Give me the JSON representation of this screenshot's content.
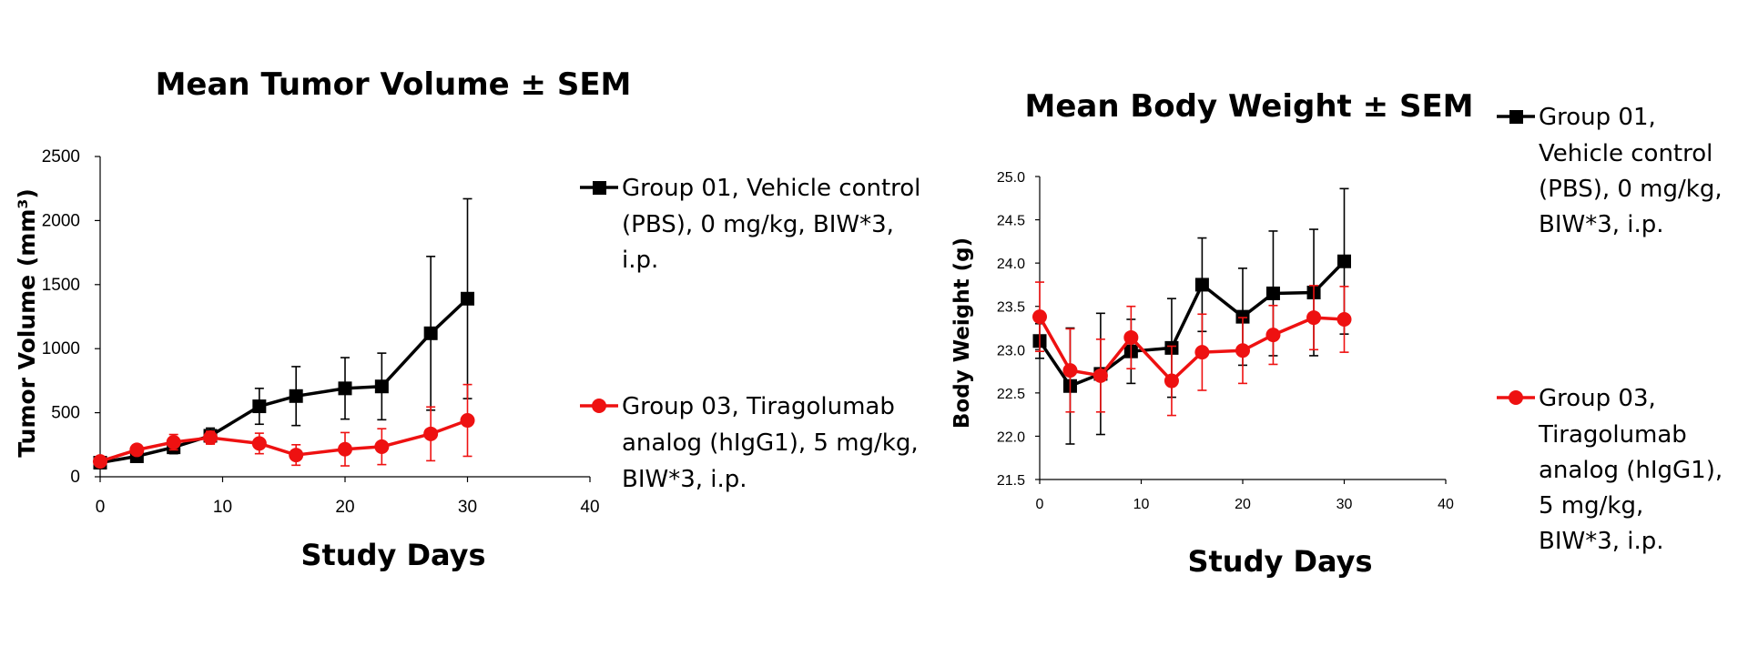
{
  "colors": {
    "group01": "#000000",
    "group03": "#ee1111",
    "axis": "#000000"
  },
  "chart_data": [
    {
      "type": "line",
      "title": "Mean Tumor Volume ± SEM",
      "xlabel": "Study Days",
      "ylabel": "Tumor Volume (mm³)",
      "xlim": [
        0,
        40
      ],
      "ylim": [
        0,
        2500
      ],
      "xticks": [
        0,
        10,
        20,
        30,
        40
      ],
      "yticks": [
        0,
        500,
        1000,
        1500,
        2000,
        2500
      ],
      "grid": false,
      "legend_position": "right",
      "series": [
        {
          "name": "Group 01, Vehicle control (PBS), 0 mg/kg, BIW*3, i.p.",
          "legend_lines": [
            "Group 01, Vehicle control",
            "(PBS), 0 mg/kg, BIW*3,",
            "i.p."
          ],
          "marker": "square",
          "color": "#000000",
          "x": [
            0,
            3,
            6,
            9,
            13,
            16,
            20,
            23,
            27,
            30
          ],
          "y": [
            110,
            160,
            230,
            320,
            550,
            630,
            690,
            705,
            1120,
            1390
          ],
          "err": [
            30,
            40,
            50,
            60,
            140,
            230,
            240,
            260,
            600,
            780
          ]
        },
        {
          "name": "Group 03, Tiragolumab analog (hIgG1), 5 mg/kg, BIW*3, i.p.",
          "legend_lines": [
            "Group 03, Tiragolumab",
            "analog (hIgG1), 5 mg/kg,",
            "BIW*3, i.p."
          ],
          "marker": "circle",
          "color": "#ee1111",
          "x": [
            0,
            3,
            6,
            9,
            13,
            16,
            20,
            23,
            27,
            30
          ],
          "y": [
            120,
            210,
            270,
            305,
            260,
            170,
            215,
            235,
            335,
            440
          ],
          "err": [
            30,
            40,
            60,
            50,
            80,
            80,
            130,
            140,
            210,
            280
          ]
        }
      ]
    },
    {
      "type": "line",
      "title": "Mean Body Weight ± SEM",
      "xlabel": "Study Days",
      "ylabel": "Body Weight (g)",
      "xlim": [
        0,
        40
      ],
      "ylim": [
        21.5,
        25.0
      ],
      "xticks": [
        0,
        10,
        20,
        30,
        40
      ],
      "yticks": [
        "21.5",
        "22.0",
        "22.5",
        "23.0",
        "23.5",
        "24.0",
        "24.5",
        "25.0"
      ],
      "grid": false,
      "legend_position": "right",
      "series": [
        {
          "name": "Group 01, Vehicle control (PBS), 0 mg/kg, BIW*3, i.p.",
          "legend_lines": [
            "Group 01,",
            "Vehicle control",
            "(PBS), 0 mg/kg,",
            "BIW*3, i.p."
          ],
          "marker": "square",
          "color": "#000000",
          "x": [
            0,
            3,
            6,
            9,
            13,
            16,
            20,
            23,
            27,
            30
          ],
          "y": [
            23.1,
            22.58,
            22.72,
            22.98,
            23.02,
            23.75,
            23.38,
            23.65,
            23.66,
            24.02
          ],
          "err": [
            0.2,
            0.67,
            0.7,
            0.37,
            0.57,
            0.54,
            0.56,
            0.72,
            0.73,
            0.84
          ]
        },
        {
          "name": "Group 03, Tiragolumab analog (hIgG1), 5 mg/kg, BIW*3, i.p.",
          "legend_lines": [
            "Group 03,",
            "Tiragolumab",
            "analog (hIgG1),",
            "5 mg/kg,",
            "BIW*3, i.p."
          ],
          "marker": "circle",
          "color": "#ee1111",
          "x": [
            0,
            3,
            6,
            9,
            13,
            16,
            20,
            23,
            27,
            30
          ],
          "y": [
            23.38,
            22.76,
            22.7,
            23.14,
            22.64,
            22.97,
            22.99,
            23.17,
            23.37,
            23.35
          ],
          "err": [
            0.4,
            0.48,
            0.42,
            0.36,
            0.4,
            0.44,
            0.38,
            0.34,
            0.37,
            0.38
          ]
        }
      ]
    }
  ]
}
